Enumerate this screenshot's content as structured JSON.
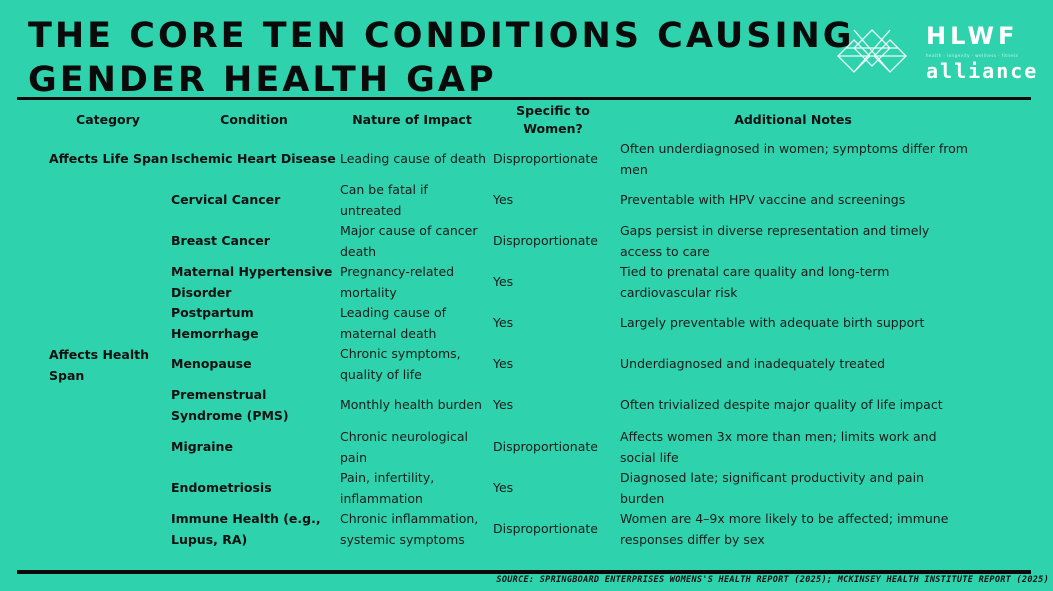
{
  "title": {
    "line1": "THE CORE TEN CONDITIONS CAUSING",
    "line2": "GENDER HEALTH GAP"
  },
  "logo": {
    "brand": "HLWF",
    "tagline": "health · longevity · wellness · fitness",
    "alliance": "alliance",
    "icon": "diamond-lattice-icon"
  },
  "table": {
    "headers": {
      "category": "Category",
      "condition": "Condition",
      "impact": "Nature of Impact",
      "specific": "Specific to Women?",
      "notes": "Additional Notes"
    },
    "categories": {
      "life_span": "Affects Life Span",
      "health_span": "Affects Health Span"
    },
    "rows": [
      {
        "condition": "Ischemic Heart Disease",
        "impact": "Leading cause of death",
        "specific": "Disproportionate",
        "notes": "Often underdiagnosed in women; symptoms differ from men"
      },
      {
        "condition": "Cervical Cancer",
        "impact": "Can be fatal if untreated",
        "specific": "Yes",
        "notes": "Preventable with HPV vaccine and screenings"
      },
      {
        "condition": "Breast Cancer",
        "impact": "Major cause of cancer death",
        "specific": "Disproportionate",
        "notes": "Gaps persist in diverse representation and timely access to care"
      },
      {
        "condition": "Maternal Hypertensive Disorder",
        "impact": "Pregnancy-related mortality",
        "specific": "Yes",
        "notes": "Tied to prenatal care quality and long-term cardiovascular risk"
      },
      {
        "condition": "Postpartum Hemorrhage",
        "impact": "Leading cause of maternal death",
        "specific": "Yes",
        "notes": "Largely preventable with adequate birth support"
      },
      {
        "condition": "Menopause",
        "impact": "Chronic symptoms, quality of life",
        "specific": "Yes",
        "notes": "Underdiagnosed and inadequately treated"
      },
      {
        "condition": "Premenstrual Syndrome (PMS)",
        "impact": "Monthly health burden",
        "specific": "Yes",
        "notes": "Often trivialized despite major quality of life impact"
      },
      {
        "condition": "Migraine",
        "impact": "Chronic neurological pain",
        "specific": "Disproportionate",
        "notes": "Affects women 3x more than men; limits work and social life"
      },
      {
        "condition": "Endometriosis",
        "impact": "Pain, infertility, inflammation",
        "specific": "Yes",
        "notes": "Diagnosed late; significant productivity and pain burden"
      },
      {
        "condition": "Immune Health (e.g., Lupus, RA)",
        "impact": "Chronic inflammation, systemic symptoms",
        "specific": "Disproportionate",
        "notes": "Women are 4–9x more likely to be affected; immune responses differ by sex"
      }
    ]
  },
  "source": "SOURCE: SPRINGBOARD ENTERPRISES WOMENS'S HEALTH REPORT (2025); MCKINSEY HEALTH INSTITUTE REPORT (2025)"
}
